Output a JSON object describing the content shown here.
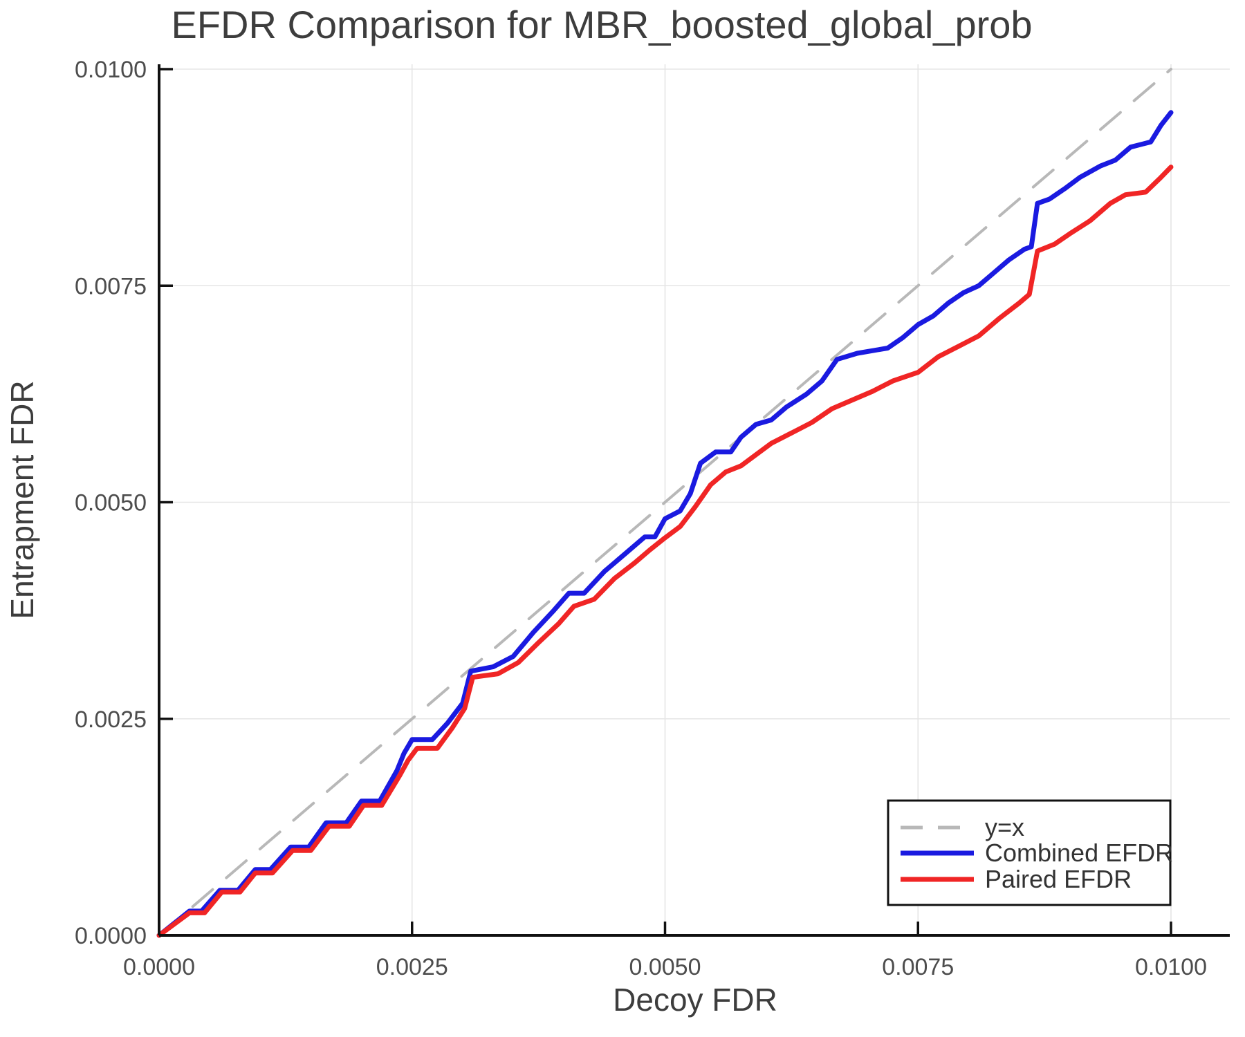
{
  "chart_data": {
    "type": "line",
    "title": "EFDR Comparison for MBR_boosted_global_prob",
    "xlabel": "Decoy FDR",
    "ylabel": "Entrapment FDR",
    "xlim": [
      0,
      0.01
    ],
    "ylim": [
      0,
      0.01
    ],
    "grid": true,
    "background": "#ffffff",
    "gridline_color": "#e5e5e5",
    "spine_color": "#111111",
    "xtick_values": [
      0,
      0.0025,
      0.005,
      0.0075,
      0.01
    ],
    "xtick_labels": [
      "0.0000",
      "0.0025",
      "0.0050",
      "0.0075",
      "0.0100"
    ],
    "ytick_values": [
      0,
      0.0025,
      0.005,
      0.0075,
      0.01
    ],
    "ytick_labels": [
      "0.0000",
      "0.0025",
      "0.0050",
      "0.0075",
      "0.0100"
    ],
    "legend_position": "bottom-right",
    "series": [
      {
        "name": "y=x",
        "color": "#b8b8b8",
        "dash": true,
        "width": 4,
        "points": [
          [
            0,
            0
          ],
          [
            0.01,
            0.01
          ]
        ]
      },
      {
        "name": "Combined EFDR",
        "color": "#1a1ae0",
        "dash": false,
        "width": 7,
        "points": [
          [
            0,
            0
          ],
          [
            0.0003,
            0.00028
          ],
          [
            0.00042,
            0.00028
          ],
          [
            0.0006,
            0.00052
          ],
          [
            0.00078,
            0.00052
          ],
          [
            0.00095,
            0.00076
          ],
          [
            0.0011,
            0.00076
          ],
          [
            0.0013,
            0.00102
          ],
          [
            0.00148,
            0.00102
          ],
          [
            0.00165,
            0.0013
          ],
          [
            0.00185,
            0.0013
          ],
          [
            0.002,
            0.00155
          ],
          [
            0.00218,
            0.00155
          ],
          [
            0.00235,
            0.0019
          ],
          [
            0.00242,
            0.0021
          ],
          [
            0.0025,
            0.00226
          ],
          [
            0.0027,
            0.00226
          ],
          [
            0.00285,
            0.00245
          ],
          [
            0.003,
            0.00268
          ],
          [
            0.00308,
            0.00305
          ],
          [
            0.0033,
            0.0031
          ],
          [
            0.0035,
            0.00322
          ],
          [
            0.0037,
            0.0035
          ],
          [
            0.0039,
            0.00375
          ],
          [
            0.00405,
            0.00395
          ],
          [
            0.0042,
            0.00395
          ],
          [
            0.0044,
            0.0042
          ],
          [
            0.0046,
            0.0044
          ],
          [
            0.0048,
            0.0046
          ],
          [
            0.0049,
            0.0046
          ],
          [
            0.005,
            0.00481
          ],
          [
            0.00515,
            0.0049
          ],
          [
            0.00525,
            0.0051
          ],
          [
            0.00535,
            0.00545
          ],
          [
            0.0055,
            0.00558
          ],
          [
            0.00565,
            0.00558
          ],
          [
            0.00575,
            0.00575
          ],
          [
            0.0059,
            0.0059
          ],
          [
            0.00605,
            0.00595
          ],
          [
            0.0062,
            0.0061
          ],
          [
            0.0064,
            0.00625
          ],
          [
            0.00655,
            0.0064
          ],
          [
            0.0067,
            0.00665
          ],
          [
            0.0069,
            0.00672
          ],
          [
            0.0072,
            0.00678
          ],
          [
            0.00735,
            0.0069
          ],
          [
            0.0075,
            0.00705
          ],
          [
            0.00765,
            0.00715
          ],
          [
            0.0078,
            0.0073
          ],
          [
            0.00795,
            0.00742
          ],
          [
            0.0081,
            0.0075
          ],
          [
            0.00825,
            0.00765
          ],
          [
            0.0084,
            0.0078
          ],
          [
            0.00855,
            0.00792
          ],
          [
            0.00862,
            0.00795
          ],
          [
            0.00868,
            0.00845
          ],
          [
            0.0088,
            0.0085
          ],
          [
            0.00895,
            0.00862
          ],
          [
            0.0091,
            0.00875
          ],
          [
            0.0093,
            0.00888
          ],
          [
            0.00945,
            0.00895
          ],
          [
            0.0096,
            0.0091
          ],
          [
            0.0098,
            0.00916
          ],
          [
            0.0099,
            0.00935
          ],
          [
            0.01,
            0.0095
          ]
        ]
      },
      {
        "name": "Paired EFDR",
        "color": "#f02525",
        "dash": false,
        "width": 7,
        "points": [
          [
            0,
            0
          ],
          [
            0.0003,
            0.00026
          ],
          [
            0.00045,
            0.00026
          ],
          [
            0.00062,
            0.0005
          ],
          [
            0.0008,
            0.0005
          ],
          [
            0.00095,
            0.00072
          ],
          [
            0.00112,
            0.00072
          ],
          [
            0.00132,
            0.00098
          ],
          [
            0.0015,
            0.00098
          ],
          [
            0.00168,
            0.00126
          ],
          [
            0.00188,
            0.00126
          ],
          [
            0.00202,
            0.0015
          ],
          [
            0.0022,
            0.0015
          ],
          [
            0.00238,
            0.00185
          ],
          [
            0.00246,
            0.00202
          ],
          [
            0.00255,
            0.00216
          ],
          [
            0.00275,
            0.00216
          ],
          [
            0.0029,
            0.0024
          ],
          [
            0.00302,
            0.00262
          ],
          [
            0.0031,
            0.00298
          ],
          [
            0.00335,
            0.00302
          ],
          [
            0.00355,
            0.00315
          ],
          [
            0.00375,
            0.00338
          ],
          [
            0.00395,
            0.0036
          ],
          [
            0.0041,
            0.0038
          ],
          [
            0.0043,
            0.00388
          ],
          [
            0.0045,
            0.00412
          ],
          [
            0.0047,
            0.0043
          ],
          [
            0.00485,
            0.00445
          ],
          [
            0.005,
            0.00459
          ],
          [
            0.00515,
            0.00472
          ],
          [
            0.0053,
            0.00495
          ],
          [
            0.00545,
            0.0052
          ],
          [
            0.0056,
            0.00535
          ],
          [
            0.00575,
            0.00542
          ],
          [
            0.0059,
            0.00555
          ],
          [
            0.00605,
            0.00568
          ],
          [
            0.00625,
            0.0058
          ],
          [
            0.00645,
            0.00592
          ],
          [
            0.00665,
            0.00608
          ],
          [
            0.00685,
            0.00618
          ],
          [
            0.00705,
            0.00628
          ],
          [
            0.00725,
            0.0064
          ],
          [
            0.0075,
            0.0065
          ],
          [
            0.0077,
            0.00668
          ],
          [
            0.0079,
            0.0068
          ],
          [
            0.0081,
            0.00692
          ],
          [
            0.0083,
            0.00712
          ],
          [
            0.0085,
            0.0073
          ],
          [
            0.0086,
            0.0074
          ],
          [
            0.00868,
            0.0079
          ],
          [
            0.00885,
            0.00798
          ],
          [
            0.009,
            0.0081
          ],
          [
            0.0092,
            0.00825
          ],
          [
            0.0094,
            0.00845
          ],
          [
            0.00955,
            0.00855
          ],
          [
            0.00975,
            0.00858
          ],
          [
            0.0099,
            0.00875
          ],
          [
            0.01,
            0.00887
          ]
        ]
      }
    ]
  }
}
